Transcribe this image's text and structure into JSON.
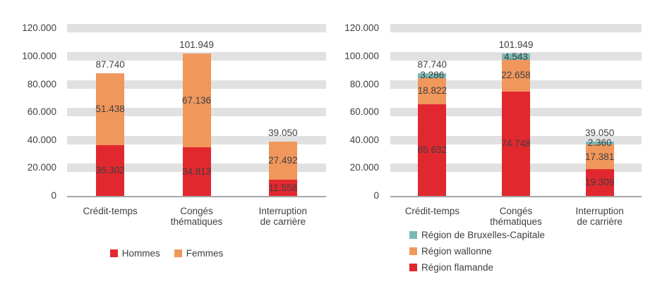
{
  "figure": {
    "background": "#ffffff",
    "text_color": "#3f3f3f",
    "gridband_color": "#e1e1e1",
    "axis_line_color": "#a6a6a6"
  },
  "chart_data": [
    {
      "type": "bar",
      "stacked": true,
      "categories": [
        [
          "Crédit-temps"
        ],
        [
          "Congés",
          "thématiques"
        ],
        [
          "Interruption",
          "de carrière"
        ]
      ],
      "series": [
        {
          "name": "Hommes",
          "color": "#e2282f",
          "values": [
            36302,
            34813,
            11558
          ],
          "value_labels": [
            "36.302",
            "34.813",
            "11.558"
          ]
        },
        {
          "name": "Femmes",
          "color": "#f0975c",
          "values": [
            51438,
            67136,
            27492
          ],
          "value_labels": [
            "51.438",
            "67.136",
            "27.492"
          ]
        }
      ],
      "totals": [
        87740,
        101949,
        39050
      ],
      "total_labels": [
        "87.740",
        "101.949",
        "39.050"
      ],
      "ylim": [
        0,
        120000
      ],
      "ytick_step": 20000,
      "ytick_labels": [
        "0",
        "20.000",
        "40.000",
        "60.000",
        "80.000",
        "100.000",
        "120.000"
      ],
      "grid": "horizontal-bands",
      "legend": {
        "layout": "horizontal",
        "position": "bottom",
        "order": "normal"
      }
    },
    {
      "type": "bar",
      "stacked": true,
      "categories": [
        [
          "Crédit-temps"
        ],
        [
          "Congés",
          "thématiques"
        ],
        [
          "Interruption",
          "de carrière"
        ]
      ],
      "series": [
        {
          "name": "Région flamande",
          "color": "#e2282f",
          "values": [
            65632,
            74748,
            19309
          ],
          "value_labels": [
            "65.632",
            "74.748",
            "19.309"
          ]
        },
        {
          "name": "Région wallonne",
          "color": "#f0975c",
          "values": [
            18822,
            22658,
            17381
          ],
          "value_labels": [
            "18.822",
            "22.658",
            "17.381"
          ]
        },
        {
          "name": "Région de Bruxelles-Capitale",
          "color": "#7bb8b5",
          "values": [
            3286,
            4543,
            2360
          ],
          "value_labels": [
            "3.286",
            "4.543",
            "2.360"
          ]
        }
      ],
      "totals": [
        87740,
        101949,
        39050
      ],
      "total_labels": [
        "87.740",
        "101.949",
        "39.050"
      ],
      "ylim": [
        0,
        120000
      ],
      "ytick_step": 20000,
      "ytick_labels": [
        "0",
        "20.000",
        "40.000",
        "60.000",
        "80.000",
        "100.000",
        "120.000"
      ],
      "grid": "horizontal-bands",
      "legend": {
        "layout": "vertical",
        "position": "bottom",
        "order": "reversed"
      }
    }
  ]
}
